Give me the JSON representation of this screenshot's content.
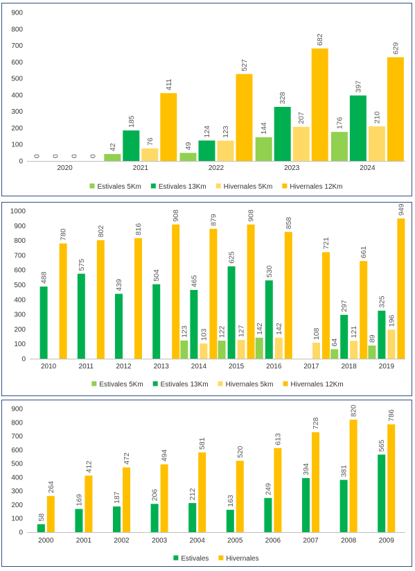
{
  "chart_data": [
    {
      "type": "bar",
      "categories": [
        "2020",
        "2021",
        "2022",
        "2023",
        "2024"
      ],
      "series": [
        {
          "name": "Estivales 5Km",
          "color": "#92d050",
          "values": [
            0,
            42,
            49,
            144,
            176
          ]
        },
        {
          "name": "Estivales 13Km",
          "color": "#00b050",
          "values": [
            0,
            185,
            124,
            328,
            397
          ]
        },
        {
          "name": "Hivernales 5Km",
          "color": "#ffd966",
          "values": [
            0,
            76,
            123,
            207,
            210
          ]
        },
        {
          "name": "Hivernales 12Km",
          "color": "#ffc000",
          "values": [
            0,
            411,
            527,
            682,
            629
          ]
        }
      ],
      "ylim": [
        0,
        900
      ],
      "yticks": [
        0,
        100,
        200,
        300,
        400,
        500,
        600,
        700,
        800,
        900
      ],
      "grid": false,
      "legend": "bottom"
    },
    {
      "type": "bar",
      "categories": [
        "2010",
        "2011",
        "2012",
        "2013",
        "2014",
        "2015",
        "2016",
        "2017",
        "2018",
        "2019"
      ],
      "series": [
        {
          "name": "Estivales 5Km",
          "color": "#92d050",
          "values": [
            null,
            null,
            null,
            null,
            123,
            122,
            142,
            null,
            64,
            89
          ]
        },
        {
          "name": "Estivales 13Km",
          "color": "#00b050",
          "values": [
            488,
            575,
            439,
            504,
            465,
            625,
            530,
            null,
            297,
            325
          ]
        },
        {
          "name": "Hivernales 5km",
          "color": "#ffd966",
          "values": [
            null,
            null,
            null,
            null,
            103,
            127,
            142,
            108,
            121,
            196
          ]
        },
        {
          "name": "Hivernales 12Km",
          "color": "#ffc000",
          "values": [
            780,
            802,
            816,
            908,
            879,
            908,
            858,
            721,
            661,
            949
          ]
        }
      ],
      "ylim": [
        0,
        1000
      ],
      "yticks": [
        0,
        100,
        200,
        300,
        400,
        500,
        600,
        700,
        800,
        900,
        1000
      ],
      "grid": false,
      "legend": "bottom"
    },
    {
      "type": "bar",
      "categories": [
        "2000",
        "2001",
        "2002",
        "2003",
        "2004",
        "2005",
        "2006",
        "2007",
        "2008",
        "2009"
      ],
      "series": [
        {
          "name": "Estivales",
          "color": "#00b050",
          "values": [
            58,
            169,
            187,
            206,
            212,
            163,
            249,
            394,
            381,
            565
          ]
        },
        {
          "name": "Hivernales",
          "color": "#ffc000",
          "values": [
            264,
            412,
            472,
            494,
            581,
            520,
            613,
            728,
            820,
            786
          ]
        }
      ],
      "ylim": [
        0,
        900
      ],
      "yticks": [
        0,
        100,
        200,
        300,
        400,
        500,
        600,
        700,
        800,
        900
      ],
      "grid": false,
      "legend": "bottom"
    }
  ]
}
